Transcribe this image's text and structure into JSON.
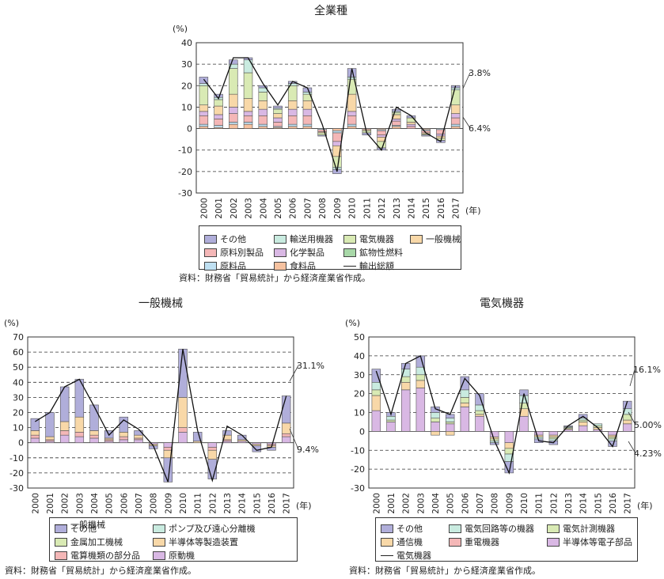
{
  "chart_data": [
    {
      "type": "bar",
      "stacked": true,
      "title": "全業種",
      "ylabel": "(%)",
      "xunit": "(年)",
      "ylim": [
        -30,
        40
      ],
      "yticks": [
        -30,
        -20,
        -10,
        0,
        10,
        20,
        30,
        40
      ],
      "grid": "dashed horizontal",
      "categories": [
        "2000",
        "2001",
        "2002",
        "2003",
        "2004",
        "2005",
        "2006",
        "2007",
        "2008",
        "2009",
        "2010",
        "2011",
        "2012",
        "2013",
        "2014",
        "2015",
        "2016",
        "2017"
      ],
      "series": [
        {
          "name": "食料品",
          "color": "#f6c2a0",
          "values": [
            1,
            0.5,
            2,
            2,
            1,
            0.5,
            1,
            1,
            0,
            -1,
            1,
            0,
            -0.5,
            1,
            0,
            -0.5,
            0,
            1
          ]
        },
        {
          "name": "原料品",
          "color": "#bfe0f2",
          "values": [
            1,
            1,
            1,
            1,
            1,
            0.5,
            1,
            1,
            -0.5,
            -1,
            1,
            0,
            -0.5,
            0.5,
            0,
            -0.5,
            -0.5,
            1
          ]
        },
        {
          "name": "原料別製品",
          "color": "#f4b7b7",
          "values": [
            4,
            3,
            4,
            3,
            4,
            2,
            4,
            4,
            -1,
            -4,
            4,
            -0.5,
            -2,
            2,
            1,
            -1,
            -2,
            3
          ]
        },
        {
          "name": "化学製品",
          "color": "#d9b8e4",
          "values": [
            2,
            2,
            3,
            2,
            3,
            2,
            3,
            3,
            0,
            -2,
            2,
            0,
            -1,
            1,
            1,
            0,
            -1,
            2
          ]
        },
        {
          "name": "一般機械",
          "color": "#f8d8a8",
          "values": [
            3,
            4,
            6,
            6,
            4,
            2,
            4,
            4,
            -0.5,
            -5,
            8,
            -0.5,
            -2,
            2,
            1,
            -0.5,
            -1,
            4
          ]
        },
        {
          "name": "電気機器",
          "color": "#d9eab4",
          "values": [
            9,
            3,
            12,
            12,
            4,
            2,
            7,
            3,
            -1,
            -5,
            7,
            -1,
            -3,
            1,
            2,
            -0.5,
            -1,
            7
          ]
        },
        {
          "name": "輸送用機器",
          "color": "#c9ebe0",
          "values": [
            1,
            1,
            2,
            6,
            2,
            0.5,
            1,
            1,
            0,
            -1,
            1,
            0,
            0,
            0.5,
            0,
            0,
            0,
            1
          ]
        },
        {
          "name": "鉱物性燃料",
          "color": "#a8d8a8",
          "values": [
            0,
            0,
            0,
            0,
            0,
            0,
            0,
            0,
            0,
            0,
            0,
            0,
            0,
            0,
            0,
            0,
            0,
            0
          ]
        },
        {
          "name": "その他",
          "color": "#b0aeda",
          "values": [
            3,
            1.5,
            2,
            1,
            1,
            1,
            1,
            2,
            -0.5,
            -2,
            4,
            -1,
            -1,
            1,
            1,
            -0.5,
            -1,
            1
          ]
        }
      ],
      "line": {
        "name": "輸出総額",
        "values": [
          23,
          14,
          33,
          33,
          21,
          11,
          22,
          19,
          2,
          -20,
          28,
          -2,
          -10,
          10,
          6,
          -2,
          -6,
          20
        ]
      },
      "annotations": [
        "3.8%",
        "6.4%"
      ],
      "legend": [
        "その他",
        "輸送用機器",
        "電気機器",
        "一般機械",
        "原料別製品",
        "化学製品",
        "鉱物性燃料",
        "原料品",
        "食料品",
        "輸出総額"
      ]
    },
    {
      "type": "bar",
      "stacked": true,
      "title": "一般機械",
      "ylabel": "(%)",
      "xunit": "(年)",
      "ylim": [
        -30,
        70
      ],
      "yticks": [
        -30,
        -20,
        -10,
        0,
        10,
        20,
        30,
        40,
        50,
        60,
        70
      ],
      "grid": "dashed horizontal",
      "categories": [
        "2000",
        "2001",
        "2002",
        "2003",
        "2004",
        "2005",
        "2006",
        "2007",
        "2008",
        "2009",
        "2010",
        "2011",
        "2012",
        "2013",
        "2014",
        "2015",
        "2016",
        "2017"
      ],
      "series": [
        {
          "name": "原動機",
          "color": "#d9b8e4",
          "values": [
            3,
            1,
            5,
            4,
            3,
            1,
            2,
            2,
            -1,
            -3,
            7,
            0,
            -3,
            1,
            1,
            -1,
            -1,
            4
          ]
        },
        {
          "name": "電算機類の部分品",
          "color": "#f4b7b7",
          "values": [
            2,
            1,
            3,
            3,
            2,
            1,
            2,
            1,
            0,
            -2,
            3,
            0,
            -2,
            1,
            0,
            0,
            -1,
            2
          ]
        },
        {
          "name": "金属加工機械",
          "color": "#d9eab4",
          "values": [
            0,
            0,
            0,
            0,
            0,
            0,
            0,
            0,
            0,
            0,
            0,
            0,
            0,
            0,
            0,
            0,
            0,
            0
          ]
        },
        {
          "name": "半導体等製造装置",
          "color": "#f8d8a8",
          "values": [
            3,
            2,
            6,
            10,
            3,
            1,
            3,
            2,
            -1,
            -5,
            20,
            1,
            -6,
            3,
            1,
            -1,
            -1,
            7
          ]
        },
        {
          "name": "ポンプ及び遠心分離機",
          "color": "#c9ebe0",
          "values": [
            0,
            0,
            0,
            0,
            0,
            0,
            0,
            0,
            0,
            0,
            0,
            0,
            0,
            0,
            0,
            0,
            0,
            0
          ]
        },
        {
          "name": "その他",
          "color": "#b0aeda",
          "values": [
            8,
            16,
            23,
            25,
            17,
            5,
            10,
            3,
            -2,
            -16,
            32,
            6,
            -13,
            3,
            3,
            -4,
            -2,
            18
          ]
        }
      ],
      "line": {
        "name": "一般機械",
        "values": [
          14,
          20,
          37,
          42,
          24,
          5,
          15,
          9,
          -2,
          -26,
          62,
          8,
          -25,
          11,
          5,
          -5,
          -3,
          31
        ]
      },
      "annotations": [
        "31.1%",
        "9.4%"
      ],
      "legend": [
        "その他",
        "ポンプ及び遠心分離機",
        "金属加工機械",
        "半導体等製造装置",
        "電算機類の部分品",
        "原動機",
        "一般機械"
      ]
    },
    {
      "type": "bar",
      "stacked": true,
      "title": "電気機器",
      "ylabel": "(%)",
      "xunit": "(年)",
      "ylim": [
        -30,
        50
      ],
      "yticks": [
        -30,
        -20,
        -10,
        0,
        10,
        20,
        30,
        40,
        50
      ],
      "grid": "dashed horizontal",
      "categories": [
        "2000",
        "2001",
        "2002",
        "2003",
        "2004",
        "2005",
        "2006",
        "2007",
        "2008",
        "2009",
        "2010",
        "2011",
        "2012",
        "2013",
        "2014",
        "2015",
        "2016",
        "2017"
      ],
      "series": [
        {
          "name": "半導体等電子部品",
          "color": "#d9b8e4",
          "values": [
            11,
            5,
            22,
            23,
            5,
            4,
            13,
            8,
            -3,
            -6,
            8,
            -2,
            -2,
            1,
            3,
            1,
            -2,
            4
          ]
        },
        {
          "name": "重電機器",
          "color": "#f4b7b7",
          "values": [
            0,
            0,
            0,
            0,
            0,
            0,
            0,
            0,
            0,
            0,
            0,
            0,
            0,
            0,
            0,
            0,
            0,
            0
          ]
        },
        {
          "name": "通信機",
          "color": "#f8d8a8",
          "values": [
            8,
            0,
            4,
            4,
            -2,
            -2,
            2,
            1,
            -1,
            -3,
            4,
            -1,
            -1,
            0.5,
            2,
            1,
            -1,
            2
          ]
        },
        {
          "name": "電気計測機器",
          "color": "#d9eab4",
          "values": [
            3,
            1,
            3,
            3,
            2,
            1,
            3,
            2,
            -1,
            -3,
            3,
            0,
            -1,
            0.5,
            1,
            1,
            -1,
            3
          ]
        },
        {
          "name": "電気回路等の機器",
          "color": "#c9ebe0",
          "values": [
            4,
            2,
            4,
            4,
            3,
            2,
            4,
            3,
            -1,
            -4,
            4,
            -1,
            -1,
            0.5,
            1,
            1,
            -1,
            3
          ]
        },
        {
          "name": "その他",
          "color": "#b0aeda",
          "values": [
            7,
            2,
            3,
            6,
            3,
            2,
            7,
            6,
            -1,
            -6,
            3,
            -2,
            -2,
            0.5,
            2,
            0,
            -3,
            4
          ]
        }
      ],
      "line": {
        "name": "電気機器",
        "values": [
          32,
          9,
          36,
          40,
          12,
          9,
          28,
          19,
          -5,
          -22,
          20,
          -5,
          -6,
          3,
          8,
          2,
          -8,
          16
        ]
      },
      "annotations": [
        "16.1%",
        "5.00%",
        "4.23%"
      ],
      "legend": [
        "その他",
        "電気回路等の機器",
        "電気計測機器",
        "通信機",
        "重電機器",
        "半導体等電子部品",
        "電気機器"
      ]
    }
  ],
  "legends": [
    {
      "items": [
        {
          "label": "その他",
          "color": "#b0aeda"
        },
        {
          "label": "輸送用機器",
          "color": "#c9ebe0"
        },
        {
          "label": "電気機器",
          "color": "#d9eab4"
        },
        {
          "label": "一般機械",
          "color": "#f8d8a8"
        },
        {
          "label": "原料別製品",
          "color": "#f4b7b7"
        },
        {
          "label": "化学製品",
          "color": "#d9b8e4"
        },
        {
          "label": "鉱物性燃料",
          "color": "#a8d8a8"
        },
        {
          "label": "",
          "color": ""
        },
        {
          "label": "原料品",
          "color": "#bfe0f2"
        },
        {
          "label": "食料品",
          "color": "#f6c2a0"
        },
        {
          "label": "輸出総額",
          "color": "",
          "line": true
        }
      ]
    },
    {
      "items": [
        {
          "label": "その他",
          "color": "#b0aeda"
        },
        {
          "label": "ポンプ及び遠心分離機",
          "color": "#c9ebe0"
        },
        {
          "label": "金属加工機械",
          "color": "#d9eab4"
        },
        {
          "label": "半導体等製造装置",
          "color": "#f8d8a8"
        },
        {
          "label": "電算機類の部分品",
          "color": "#f4b7b7"
        },
        {
          "label": "原動機",
          "color": "#d9b8e4"
        },
        {
          "label": "一般機械",
          "color": "",
          "line": true
        }
      ]
    },
    {
      "items": [
        {
          "label": "その他",
          "color": "#b0aeda"
        },
        {
          "label": "電気回路等の機器",
          "color": "#c9ebe0"
        },
        {
          "label": "電気計測機器",
          "color": "#d9eab4"
        },
        {
          "label": "通信機",
          "color": "#f8d8a8"
        },
        {
          "label": "重電機器",
          "color": "#f4b7b7"
        },
        {
          "label": "半導体等電子部品",
          "color": "#d9b8e4"
        },
        {
          "label": "電気機器",
          "color": "",
          "line": true
        }
      ]
    }
  ],
  "sources": [
    "資料：財務省「貿易統計」から経済産業省作成。",
    "資料：財務省「貿易統計」から経済産業省作成。",
    "資料：財務省「貿易統計」から経済産業省作成。"
  ]
}
